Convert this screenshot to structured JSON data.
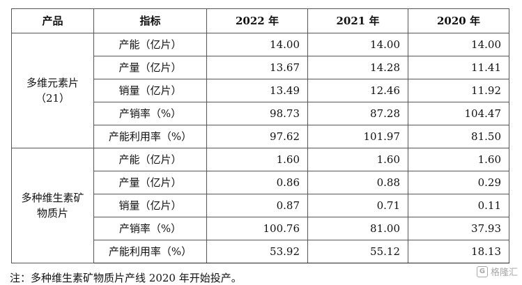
{
  "table": {
    "headers": [
      "产品",
      "指标",
      "2022 年",
      "2021 年",
      "2020 年"
    ],
    "groups": [
      {
        "product_line1": "多维元素片",
        "product_line2": "（21）",
        "rows": [
          {
            "indicator": "产能（亿片）",
            "v2022": "14.00",
            "v2021": "14.00",
            "v2020": "14.00"
          },
          {
            "indicator": "产量（亿片）",
            "v2022": "13.67",
            "v2021": "14.28",
            "v2020": "11.41"
          },
          {
            "indicator": "销量（亿片）",
            "v2022": "13.49",
            "v2021": "12.46",
            "v2020": "11.92"
          },
          {
            "indicator": "产销率（%）",
            "v2022": "98.73",
            "v2021": "87.28",
            "v2020": "104.47"
          },
          {
            "indicator": "产能利用率（%）",
            "v2022": "97.62",
            "v2021": "101.97",
            "v2020": "81.50"
          }
        ]
      },
      {
        "product_line1": "多种维生素矿",
        "product_line2": "物质片",
        "rows": [
          {
            "indicator": "产能（亿片）",
            "v2022": "1.60",
            "v2021": "1.60",
            "v2020": "1.60"
          },
          {
            "indicator": "产量（亿片）",
            "v2022": "0.86",
            "v2021": "0.88",
            "v2020": "0.29"
          },
          {
            "indicator": "销量（亿片）",
            "v2022": "0.87",
            "v2021": "0.71",
            "v2020": "0.11"
          },
          {
            "indicator": "产销率（%）",
            "v2022": "100.76",
            "v2021": "81.00",
            "v2020": "37.93"
          },
          {
            "indicator": "产能利用率（%）",
            "v2022": "53.92",
            "v2021": "55.12",
            "v2020": "18.13"
          }
        ]
      }
    ]
  },
  "note": "注：多种维生素矿物质片产线 2020 年开始投产。",
  "watermark": {
    "text": "格隆汇",
    "logo_icon": "gelonghui-logo-icon"
  }
}
